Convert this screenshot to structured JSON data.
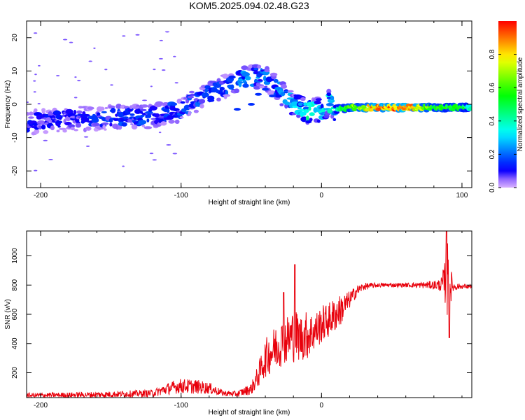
{
  "figure": {
    "title": "KOM5.2025.094.02.48.G23"
  },
  "chart_data": [
    {
      "type": "heatmap",
      "xlabel": "Height of straight line (km)",
      "ylabel": "Frequency (Hz)",
      "xlim": [
        -210,
        107
      ],
      "ylim": [
        -25,
        25
      ],
      "xticks": [
        -200,
        -100,
        0,
        100
      ],
      "yticks": [
        -20,
        -10,
        0,
        10,
        20
      ],
      "colorbar": {
        "label": "Normalized spectral amplitude",
        "range": [
          0.0,
          1.0
        ],
        "ticks": [
          0.0,
          0.2,
          0.4,
          0.6,
          0.8
        ]
      },
      "ridge": {
        "x": [
          -210,
          -180,
          -150,
          -120,
          -100,
          -90,
          -80,
          -70,
          -60,
          -50,
          -45,
          -40,
          -35,
          -30,
          -25,
          -20,
          -15,
          -10,
          -5,
          0,
          5,
          10,
          20,
          40,
          60,
          80,
          100,
          107
        ],
        "y": [
          -5.5,
          -4.5,
          -4,
          -3.5,
          -1.5,
          1,
          3,
          5,
          7,
          8,
          8.5,
          8,
          6,
          4,
          2,
          0,
          -1,
          -2,
          -2,
          -1.8,
          0.5,
          -1.5,
          -1,
          -1,
          -1,
          -1,
          -1,
          -1
        ],
        "amplitude": [
          0.1,
          0.1,
          0.15,
          0.15,
          0.15,
          0.15,
          0.2,
          0.15,
          0.2,
          0.2,
          0.2,
          0.2,
          0.15,
          0.2,
          0.2,
          0.25,
          0.3,
          0.35,
          0.3,
          0.3,
          0.3,
          0.35,
          0.6,
          0.85,
          0.9,
          0.55,
          0.5,
          0.35
        ]
      },
      "grid": false
    },
    {
      "type": "line",
      "xlabel": "Height of straight line (km)",
      "ylabel": "SNR (v/v)",
      "xlim": [
        -210,
        107
      ],
      "ylim": [
        30,
        1170
      ],
      "xticks": [
        -200,
        -100,
        0
      ],
      "yticks": [
        200,
        400,
        600,
        800,
        1000
      ],
      "series": [
        {
          "color": "#e8000b",
          "envelope_x": [
            -210,
            -160,
            -120,
            -110,
            -100,
            -90,
            -80,
            -70,
            -60,
            -50,
            -45,
            -40,
            -35,
            -30,
            -25,
            -20,
            -15,
            -10,
            -5,
            0,
            5,
            10,
            15,
            20,
            25,
            30,
            40,
            50,
            60,
            70,
            80,
            85,
            88,
            90,
            92,
            94,
            100,
            107
          ],
          "envelope_mean": [
            45,
            50,
            60,
            90,
            110,
            105,
            95,
            60,
            55,
            90,
            180,
            300,
            350,
            400,
            420,
            460,
            440,
            460,
            480,
            530,
            560,
            600,
            640,
            700,
            760,
            790,
            800,
            800,
            800,
            800,
            800,
            800,
            820,
            820,
            800,
            790,
            790,
            790
          ],
          "envelope_amp": [
            15,
            20,
            25,
            40,
            50,
            50,
            40,
            20,
            20,
            40,
            80,
            130,
            150,
            160,
            170,
            190,
            160,
            170,
            130,
            130,
            120,
            120,
            100,
            60,
            40,
            25,
            15,
            15,
            15,
            20,
            30,
            45,
            150,
            300,
            120,
            30,
            15,
            15
          ],
          "peaks": [
            {
              "x": -19,
              "y": 940
            },
            {
              "x": -27,
              "y": 750
            },
            {
              "x": 89,
              "y": 1170
            },
            {
              "x": 91,
              "y": 440
            }
          ]
        }
      ],
      "grid": false
    }
  ]
}
